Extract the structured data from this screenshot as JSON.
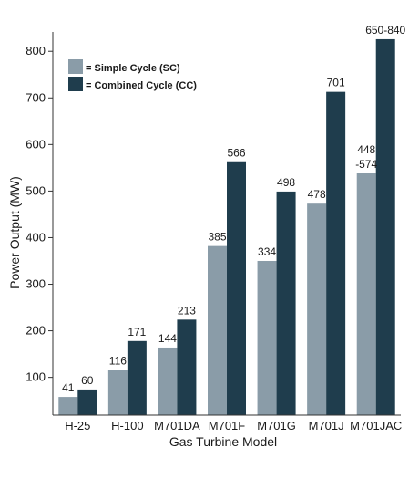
{
  "chart_data": {
    "type": "bar",
    "title": "",
    "xlabel": "Gas Turbine Model",
    "ylabel": "Power Output (MW)",
    "ylim": [
      50,
      850
    ],
    "yticks": [
      100,
      200,
      300,
      400,
      500,
      600,
      700,
      800
    ],
    "categories": [
      "H-25",
      "H-100",
      "M701DA",
      "M701F",
      "M701G",
      "M701J",
      "M701JAC"
    ],
    "grid": false,
    "legend_position": "top-left",
    "series": [
      {
        "name": "= Simple Cycle (SC)",
        "color": "#8a9ca8",
        "values": [
          41,
          116,
          144,
          385,
          334,
          478,
          448
        ],
        "labels": [
          "41",
          "116",
          "144",
          "385",
          "334",
          "478",
          "448\n-574"
        ],
        "display_values": [
          58,
          116,
          164,
          382,
          350,
          473,
          538
        ]
      },
      {
        "name": "= Combined Cycle (CC)",
        "color": "#1f3d4d",
        "values": [
          60,
          171,
          213,
          566,
          498,
          701,
          650
        ],
        "labels": [
          "60",
          "171",
          "213",
          "566",
          "498",
          "701",
          "650-840"
        ],
        "display_values": [
          74,
          178,
          224,
          562,
          499,
          713,
          826
        ]
      }
    ]
  }
}
